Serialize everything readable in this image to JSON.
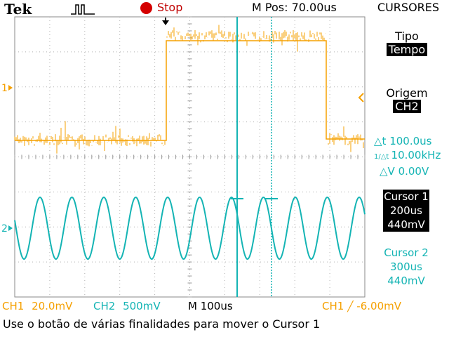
{
  "header": {
    "brand": "Tek",
    "acquisition_icon": "pulse-icon",
    "run_state": "Stop",
    "position": "M Pos: 70.00us"
  },
  "menu": {
    "title": "CURSORES",
    "type_label": "Tipo",
    "type_value": "Tempo",
    "source_label": "Origem",
    "source_value": "CH2",
    "delta_t": "100.0us",
    "one_over_delta_t": "10.00kHz",
    "delta_v": "0.00V",
    "cursor1": {
      "label": "Cursor 1",
      "time": "200us",
      "voltage": "440mV"
    },
    "cursor2": {
      "label": "Cursor 2",
      "time": "300us",
      "voltage": "440mV"
    }
  },
  "channels": {
    "ch1_marker": "1",
    "ch2_marker": "2"
  },
  "status": {
    "ch1": "CH1",
    "ch1_scale": "20.0mV",
    "ch2": "CH2",
    "ch2_scale": "500mV",
    "timebase": "M 100us",
    "trigger_source": "CH1",
    "trigger_level": "-6.00mV"
  },
  "message": "Use o botão de várias finalidades para mover o Cursor 1",
  "colors": {
    "ch1": "#f5a000",
    "ch2": "#14b4b4",
    "grid": "#b0b0b0",
    "stop": "#d40000"
  }
}
